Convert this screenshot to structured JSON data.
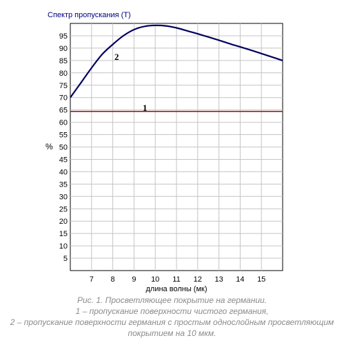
{
  "chart_data": {
    "type": "line",
    "title": "Спектр пропускания (T)",
    "xlabel": "длина волны (мк)",
    "ylabel": "%",
    "xlim": [
      6,
      16
    ],
    "ylim": [
      0,
      100
    ],
    "x_ticks": [
      7,
      8,
      9,
      10,
      11,
      12,
      13,
      14,
      15
    ],
    "y_ticks": [
      5,
      10,
      15,
      20,
      25,
      30,
      35,
      40,
      45,
      50,
      55,
      60,
      65,
      70,
      75,
      80,
      85,
      90,
      95
    ],
    "grid": true,
    "series": [
      {
        "name": "1",
        "color": "#a01818",
        "x": [
          6,
          16
        ],
        "y": [
          64.4,
          64.4
        ]
      },
      {
        "name": "2",
        "color": "#000060",
        "x": [
          6,
          6.5,
          7,
          7.5,
          8,
          8.5,
          9,
          9.5,
          10,
          10.5,
          11,
          11.5,
          12,
          12.5,
          13,
          13.5,
          14,
          14.5,
          15,
          15.5,
          16
        ],
        "y": [
          70,
          76,
          82,
          87.5,
          91.5,
          95,
          97.5,
          98.8,
          99.2,
          99,
          98.2,
          97,
          95.8,
          94.5,
          93.2,
          91.8,
          90.5,
          89.2,
          87.8,
          86.4,
          85
        ]
      }
    ]
  },
  "caption": {
    "line1": "Рис. 1. Просветляющее покрытие на германии.",
    "line2": "1 – пропускание поверхности чистого германия,",
    "line3": "2 – пропускание поверхности германия с простым однослойным просветляющим",
    "line4": "покрытием на 10 мкм."
  }
}
